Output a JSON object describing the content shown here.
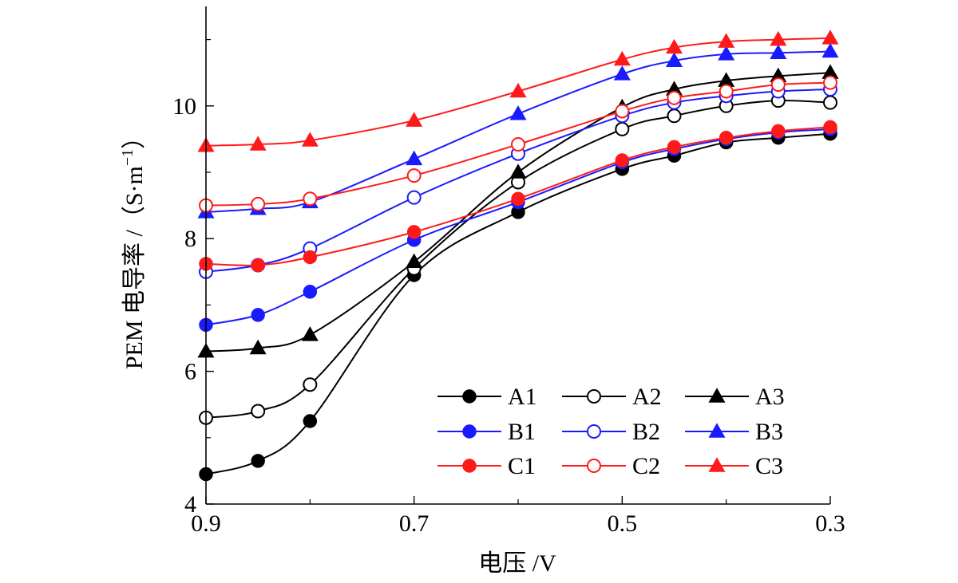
{
  "chart_data": {
    "type": "line",
    "title": "",
    "xlabel": "电压 /V",
    "ylabel": "PEM 电导率 /（S·m",
    "ylabel_sup": "−1",
    "ylabel_close": "）",
    "xlim": [
      0.9,
      0.3
    ],
    "ylim": [
      4,
      11.5
    ],
    "x_reversed": true,
    "xticks": [
      0.9,
      0.7,
      0.5,
      0.3
    ],
    "xtick_labels": [
      "0.9",
      "0.7",
      "0.5",
      "0.3"
    ],
    "yticks": [
      4,
      6,
      8,
      10
    ],
    "ytick_labels": [
      "4",
      "6",
      "8",
      "10"
    ],
    "grid": false,
    "legend_position": "bottom-right",
    "legend_columns": 3,
    "x": [
      0.9,
      0.85,
      0.8,
      0.7,
      0.6,
      0.5,
      0.45,
      0.4,
      0.35,
      0.3
    ],
    "colors": {
      "A": "#000000",
      "B": "#1a1aff",
      "C": "#ff1a1a"
    },
    "series": [
      {
        "name": "A1",
        "color": "#000000",
        "marker": "filled-circle",
        "values": [
          4.45,
          4.65,
          5.25,
          7.45,
          8.4,
          9.05,
          9.25,
          9.45,
          9.52,
          9.58
        ]
      },
      {
        "name": "A2",
        "color": "#000000",
        "marker": "open-circle",
        "values": [
          5.3,
          5.4,
          5.8,
          7.55,
          8.85,
          9.65,
          9.85,
          10.0,
          10.08,
          10.05
        ]
      },
      {
        "name": "A3",
        "color": "#000000",
        "marker": "filled-triangle",
        "values": [
          6.3,
          6.35,
          6.55,
          7.65,
          9.0,
          9.98,
          10.25,
          10.38,
          10.45,
          10.5
        ]
      },
      {
        "name": "B1",
        "color": "#1a1aff",
        "marker": "filled-circle",
        "values": [
          6.7,
          6.85,
          7.2,
          7.98,
          8.55,
          9.15,
          9.35,
          9.5,
          9.6,
          9.65
        ]
      },
      {
        "name": "B2",
        "color": "#1a1aff",
        "marker": "open-circle",
        "values": [
          7.5,
          7.6,
          7.85,
          8.62,
          9.28,
          9.85,
          10.05,
          10.15,
          10.22,
          10.25
        ]
      },
      {
        "name": "B3",
        "color": "#1a1aff",
        "marker": "filled-triangle",
        "values": [
          8.4,
          8.45,
          8.55,
          9.2,
          9.88,
          10.48,
          10.68,
          10.78,
          10.8,
          10.82
        ]
      },
      {
        "name": "C1",
        "color": "#ff1a1a",
        "marker": "filled-circle",
        "values": [
          7.62,
          7.6,
          7.72,
          8.1,
          8.6,
          9.18,
          9.38,
          9.52,
          9.62,
          9.68
        ]
      },
      {
        "name": "C2",
        "color": "#ff1a1a",
        "marker": "open-circle",
        "values": [
          8.5,
          8.52,
          8.6,
          8.95,
          9.42,
          9.92,
          10.12,
          10.22,
          10.32,
          10.35
        ]
      },
      {
        "name": "C3",
        "color": "#ff1a1a",
        "marker": "filled-triangle",
        "values": [
          9.4,
          9.42,
          9.48,
          9.78,
          10.22,
          10.7,
          10.88,
          10.97,
          11.0,
          11.02
        ]
      }
    ]
  }
}
